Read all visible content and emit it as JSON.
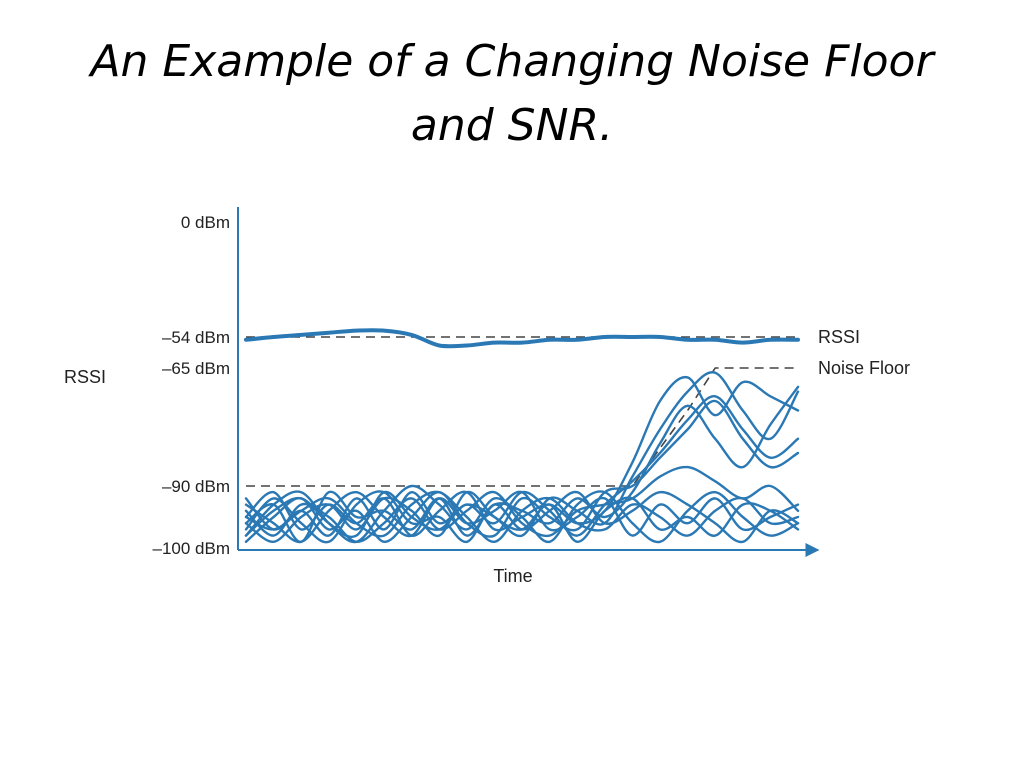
{
  "slide": {
    "title_line1": "An Example of a Changing Noise Floor",
    "title_line2": "and SNR."
  },
  "chart_data": {
    "type": "line",
    "title": "",
    "xlabel": "Time",
    "ylabel": "RSSI",
    "x": [
      0,
      1,
      2,
      3,
      4,
      5,
      6,
      7,
      8,
      9,
      10,
      11,
      12,
      13,
      14,
      15,
      16,
      17,
      18,
      19,
      20
    ],
    "yticks": [
      {
        "value": 0,
        "label": "0 dBm"
      },
      {
        "value": -54,
        "label": "–54 dBm"
      },
      {
        "value": -65,
        "label": "–65 dBm"
      },
      {
        "value": -90,
        "label": "–90 dBm"
      },
      {
        "value": -100,
        "label": "–100 dBm"
      }
    ],
    "grid": false,
    "legend_position": "right",
    "colors": {
      "signal": "#2a78b4",
      "reference": "#444444",
      "axis": "#2a78b4"
    },
    "series": [
      {
        "name": "RSSI",
        "style": "dashed",
        "values": [
          -54,
          -54,
          -54,
          -54,
          -54,
          -54,
          -54,
          -54,
          -54,
          -54,
          -54,
          -54,
          -54,
          -54,
          -54,
          -54,
          -54,
          -54,
          -54,
          -54,
          -54
        ]
      },
      {
        "name": "Noise Floor",
        "style": "dashed",
        "values": [
          -90,
          -90,
          -90,
          -90,
          -90,
          -90,
          -90,
          -90,
          -90,
          -90,
          -90,
          -90,
          -90,
          -90,
          -90,
          -82,
          -74,
          -65,
          -65,
          -65,
          -65
        ]
      },
      {
        "style": "signal",
        "values": [
          -55,
          -54,
          -53,
          -52,
          -51,
          -51,
          -53,
          -57,
          -57,
          -56,
          -56,
          -55,
          -55,
          -54,
          -54,
          -54,
          -55,
          -55,
          -56,
          -55,
          -55
        ]
      },
      {
        "style": "noise",
        "values": [
          -95,
          -97,
          -94,
          -92,
          -96,
          -98,
          -93,
          -91,
          -95,
          -99,
          -94,
          -92,
          -96,
          -97,
          -93,
          -95,
          -98,
          -94,
          -92,
          -96,
          -95
        ]
      },
      {
        "style": "noise",
        "values": [
          -98,
          -93,
          -91,
          -96,
          -99,
          -94,
          -90,
          -93,
          -97,
          -92,
          -95,
          -99,
          -93,
          -91,
          -96,
          -99,
          -94,
          -91,
          -95,
          -98,
          -96
        ]
      },
      {
        "style": "noise",
        "values": [
          -96,
          -99,
          -95,
          -93,
          -97,
          -92,
          -94,
          -98,
          -91,
          -95,
          -97,
          -93,
          -99,
          -94,
          -92,
          -97,
          -95,
          -98,
          -93,
          -94,
          -97
        ]
      },
      {
        "style": "noise",
        "values": [
          -93,
          -96,
          -99,
          -94,
          -91,
          -95,
          -98,
          -92,
          -96,
          -94,
          -91,
          -97,
          -95,
          -92,
          -98,
          -93,
          -96,
          -92,
          -97,
          -95,
          -93
        ]
      },
      {
        "style": "noise",
        "values": [
          -97,
          -92,
          -96,
          -99,
          -93,
          -91,
          -96,
          -95,
          -99,
          -93,
          -97,
          -94,
          -91,
          -96,
          -94,
          -91,
          -93,
          -96,
          -99,
          -94,
          -96
        ]
      },
      {
        "style": "noise",
        "values": [
          -94,
          -98,
          -93,
          -95,
          -99,
          -96,
          -92,
          -97,
          -94,
          -91,
          -96,
          -98,
          -94,
          -93,
          -92,
          -88,
          -86,
          -89,
          -92,
          -90,
          -94
        ]
      },
      {
        "style": "noise",
        "values": [
          -99,
          -95,
          -92,
          -97,
          -94,
          -99,
          -95,
          -91,
          -96,
          -98,
          -92,
          -95,
          -97,
          -91,
          -90,
          -84,
          -78,
          -72,
          -80,
          -86,
          -83
        ]
      },
      {
        "style": "noise",
        "values": [
          -95,
          -91,
          -97,
          -93,
          -96,
          -92,
          -98,
          -94,
          -91,
          -97,
          -95,
          -93,
          -96,
          -94,
          -85,
          -72,
          -67,
          -75,
          -68,
          -71,
          -74
        ]
      },
      {
        "style": "noise",
        "values": [
          -92,
          -97,
          -94,
          -98,
          -92,
          -97,
          -91,
          -96,
          -93,
          -95,
          -98,
          -92,
          -94,
          -96,
          -88,
          -78,
          -70,
          -66,
          -74,
          -80,
          -70
        ]
      },
      {
        "style": "noise",
        "values": [
          -96,
          -93,
          -99,
          -91,
          -95,
          -94,
          -97,
          -92,
          -98,
          -93,
          -94,
          -96,
          -92,
          -95,
          -91,
          -81,
          -73,
          -80,
          -86,
          -77,
          -69
        ]
      },
      {
        "style": "noise",
        "values": [
          -98,
          -94,
          -92,
          -96,
          -98,
          -91,
          -95,
          -97,
          -93,
          -96,
          -91,
          -94,
          -98,
          -93,
          -89,
          -83,
          -76,
          -71,
          -78,
          -84,
          -80
        ]
      }
    ]
  }
}
